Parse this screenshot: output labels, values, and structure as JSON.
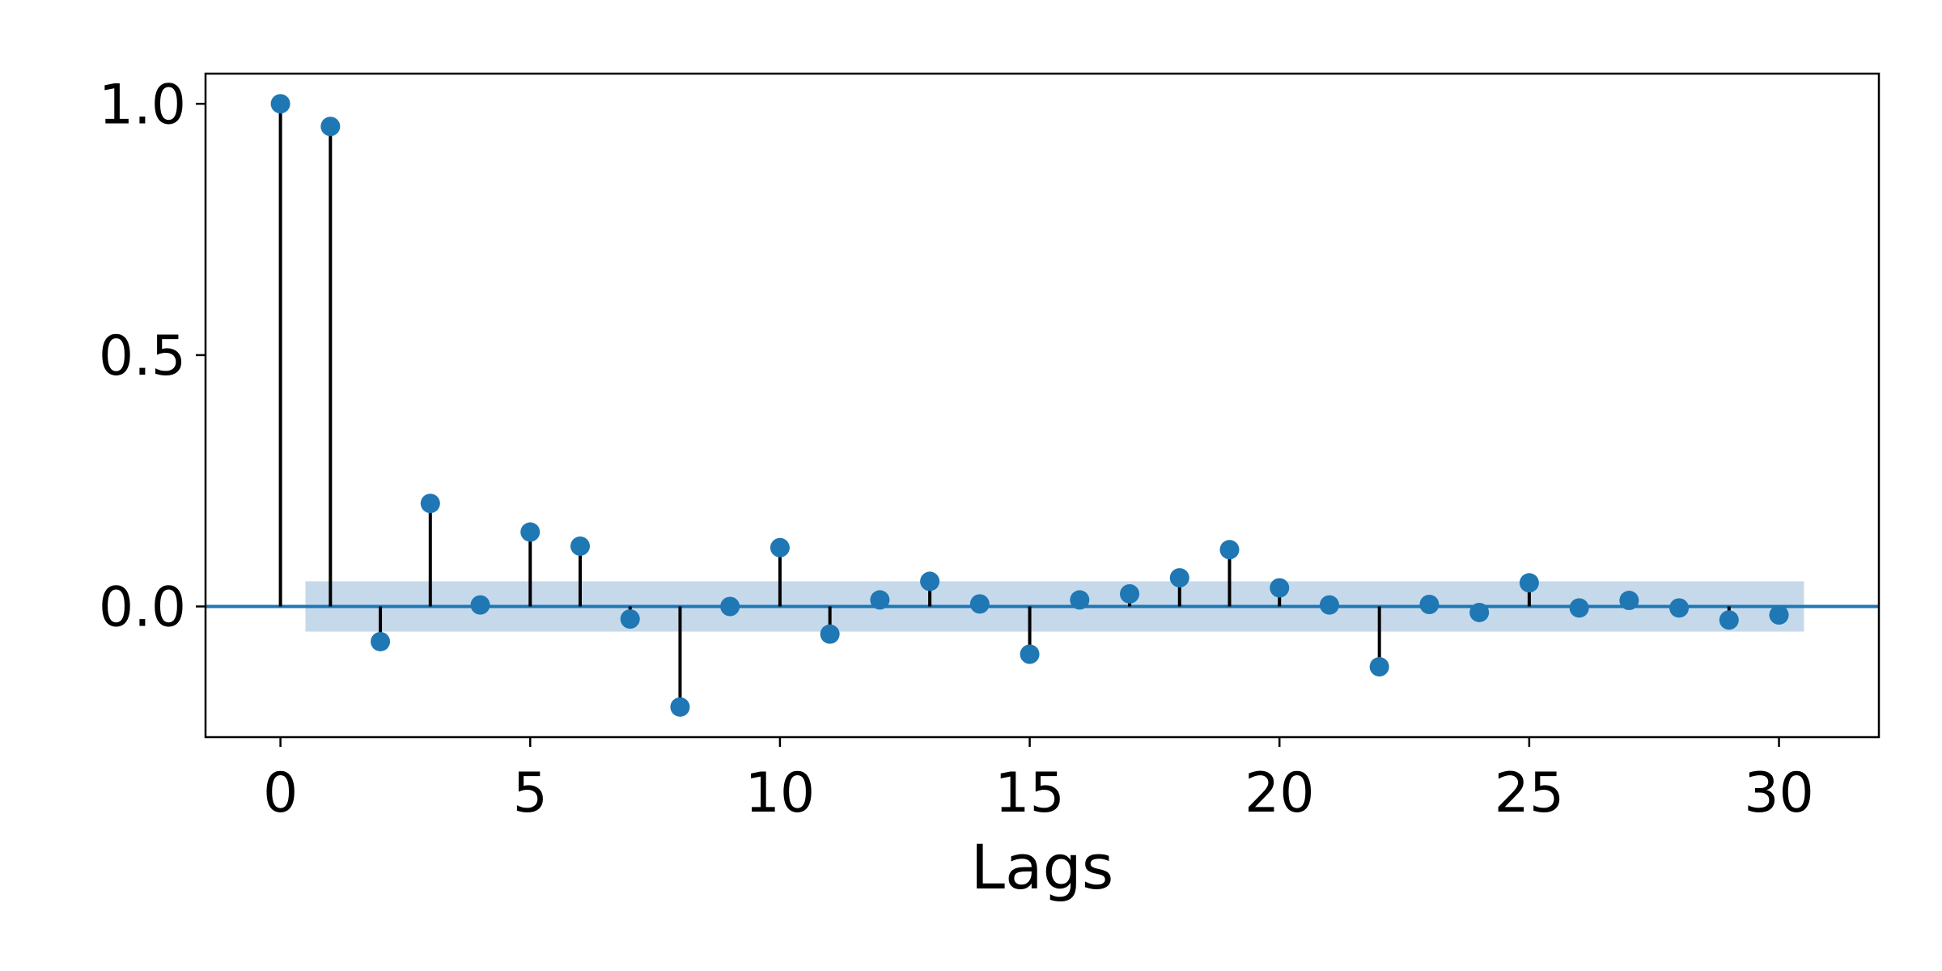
{
  "chart_data": {
    "type": "scatter",
    "subtype": "stem",
    "title": "",
    "xlabel": "Lags",
    "ylabel": "",
    "xlim": [
      -1.5,
      32
    ],
    "ylim": [
      -0.26,
      1.06
    ],
    "xticks": [
      0,
      5,
      10,
      15,
      20,
      25,
      30
    ],
    "xtick_labels": [
      "0",
      "5",
      "10",
      "15",
      "20",
      "25",
      "30"
    ],
    "yticks": [
      0.0,
      0.5,
      1.0
    ],
    "ytick_labels": [
      "0.0",
      "0.5",
      "1.0"
    ],
    "grid": false,
    "series": [
      {
        "x": [
          0,
          1,
          2,
          3,
          4,
          5,
          6,
          7,
          8,
          9,
          10,
          11,
          12,
          13,
          14,
          15,
          16,
          17,
          18,
          19,
          20,
          21,
          22,
          23,
          24,
          25,
          26,
          27,
          28,
          29,
          30
        ],
        "values": [
          1.0,
          0.955,
          -0.07,
          0.205,
          0.003,
          0.148,
          0.12,
          -0.025,
          -0.2,
          0.0,
          0.117,
          -0.055,
          0.013,
          0.05,
          0.005,
          -0.095,
          0.013,
          0.025,
          0.057,
          0.113,
          0.037,
          0.003,
          -0.12,
          0.004,
          -0.012,
          0.047,
          -0.003,
          0.012,
          -0.003,
          -0.027,
          -0.017
        ]
      }
    ],
    "confidence_band": {
      "x_range": [
        0.5,
        30.5
      ],
      "upper": 0.05,
      "lower": -0.05
    },
    "colors": {
      "marker": "#1f77b4",
      "stem": "#000000",
      "zero_line": "#1f77b4",
      "band": "#c6d9eb"
    }
  }
}
